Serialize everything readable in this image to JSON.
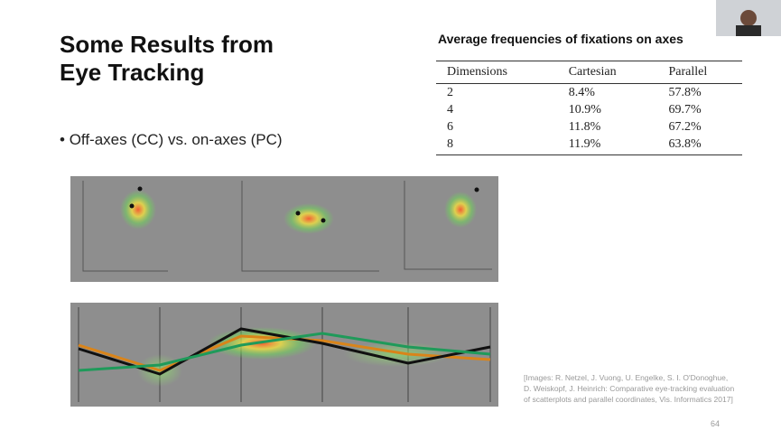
{
  "slide": {
    "title_lines": [
      "Some Results from",
      "Eye Tracking"
    ],
    "bullet": "Off-axes (CC) vs. on-axes (PC)",
    "citation_lines": [
      "[Images: R. Netzel, J. Vuong, U. Engelke, S. I. O'Donoghue,",
      "D. Weiskopf, J. Heinrich: Comparative eye-tracking evaluation",
      "of scatterplots and parallel coordinates, Vis. Informatics 2017]"
    ],
    "page_number": "64"
  },
  "table": {
    "title": "Average frequencies of fixations on axes",
    "header": [
      "Dimensions",
      "Cartesian",
      "Parallel"
    ],
    "rows": [
      [
        "2",
        "8.4%",
        "57.8%"
      ],
      [
        "4",
        "10.9%",
        "69.7%"
      ],
      [
        "6",
        "11.8%",
        "67.2%"
      ],
      [
        "8",
        "11.9%",
        "63.8%"
      ]
    ]
  }
}
